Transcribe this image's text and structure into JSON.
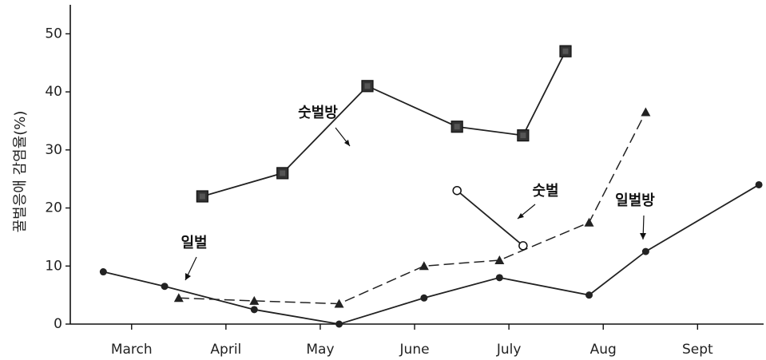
{
  "chart_data": {
    "type": "line",
    "title": "",
    "xlabel": "",
    "ylabel": "꿀벌응애 감염율(%)",
    "ylim": [
      0,
      55
    ],
    "yticks": [
      0,
      10,
      20,
      30,
      40,
      50
    ],
    "x_categories": [
      "March",
      "April",
      "May",
      "June",
      "July",
      "Aug",
      "Sept"
    ],
    "x_note": "x values are months as decimals (March=3 ... Sept=9)",
    "xlim": [
      2.35,
      9.7
    ],
    "grid": false,
    "series": [
      {
        "name": "숫벌방",
        "style": "solid",
        "marker": "filled-square",
        "color": "#222222",
        "x": [
          3.75,
          4.6,
          5.5,
          6.45,
          7.15,
          7.6
        ],
        "y": [
          22,
          26,
          41,
          34,
          32.5,
          47
        ]
      },
      {
        "name": "숫벌",
        "style": "solid",
        "marker": "open-circle",
        "color": "#222222",
        "x": [
          6.45,
          7.15
        ],
        "y": [
          23,
          13.5
        ]
      },
      {
        "name": "일벌방",
        "style": "dashed",
        "marker": "filled-triangle",
        "color": "#222222",
        "x": [
          3.5,
          4.3,
          5.2,
          6.1,
          6.9,
          7.85,
          8.45
        ],
        "y": [
          4.5,
          4,
          3.5,
          10,
          11,
          17.5,
          36.5
        ]
      },
      {
        "name": "일벌",
        "style": "solid",
        "marker": "filled-circle",
        "color": "#222222",
        "x": [
          2.7,
          3.35,
          4.3,
          5.2,
          6.1,
          6.9,
          7.85,
          8.45,
          9.65
        ],
        "y": [
          9,
          6.5,
          2.5,
          0,
          4.5,
          8,
          5,
          12.5,
          24
        ]
      }
    ],
    "annotations": [
      {
        "text": "숫벌방",
        "series": "숫벌방"
      },
      {
        "text": "숫벌",
        "series": "숫벌"
      },
      {
        "text": "일벌방",
        "series": "일벌방"
      },
      {
        "text": "일벌",
        "series": "일벌"
      }
    ]
  }
}
